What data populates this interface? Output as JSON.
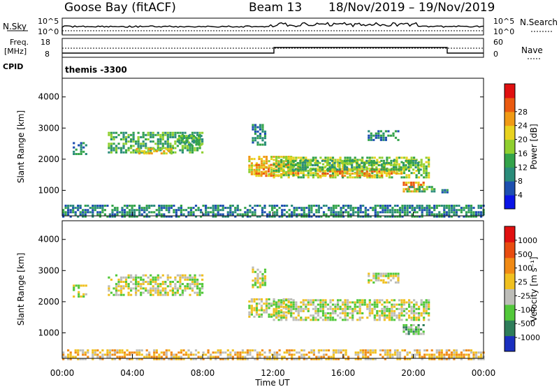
{
  "header": {
    "station": "Goose Bay (fitACF)",
    "beam": "Beam 13",
    "date_range": "18/Nov/2019 – 19/Nov/2019"
  },
  "sky_panel": {
    "left_label": "N.Sky",
    "right_label": "N.Search",
    "left_ticks": [
      "10^5",
      "10^0"
    ],
    "right_ticks": [
      "10^5",
      "10^0"
    ]
  },
  "freq_panel": {
    "left_label_1": "Freq.",
    "left_label_2": "[MHz]",
    "right_label": "Nave",
    "left_ticks": [
      "18",
      "8"
    ],
    "right_ticks": [
      "60",
      "0"
    ]
  },
  "cpid": {
    "label": "CPID",
    "value": "themis  -3300"
  },
  "chart_data": [
    {
      "type": "heatmap",
      "title": "Power",
      "ylabel": "Slant Range [km]",
      "ylim": [
        180,
        4600
      ],
      "yticks": [
        "1000",
        "2000",
        "3000",
        "4000"
      ],
      "xlim_hours": [
        0,
        24
      ],
      "colorbar_label": "Power [dB]",
      "colorbar_ticks": [
        "4",
        "8",
        "12",
        "16",
        "20",
        "24",
        "28"
      ],
      "colorbar_colors": [
        "#0a14e6",
        "#1d4fb0",
        "#2a8c7a",
        "#33a34a",
        "#8fcf2f",
        "#e8d21f",
        "#f09a15",
        "#ea5a10",
        "#e01010"
      ],
      "regions": [
        {
          "t0": 0.6,
          "t1": 1.4,
          "r0": 2200,
          "r1": 2600,
          "level": 2
        },
        {
          "t0": 2.6,
          "t1": 8.0,
          "r0": 2250,
          "r1": 2900,
          "level": 3
        },
        {
          "t0": 4.2,
          "t1": 6.2,
          "r0": 2220,
          "r1": 2420,
          "level": 5
        },
        {
          "t0": 6.6,
          "t1": 7.9,
          "r0": 2500,
          "r1": 2850,
          "level": 3
        },
        {
          "t0": 10.6,
          "t1": 13.0,
          "r0": 1550,
          "r1": 2150,
          "level": 5
        },
        {
          "t0": 11.0,
          "t1": 13.4,
          "r0": 1500,
          "r1": 1900,
          "level": 6
        },
        {
          "t0": 12.0,
          "t1": 20.9,
          "r0": 1450,
          "r1": 2100,
          "level": 4
        },
        {
          "t0": 14.5,
          "t1": 19.5,
          "r0": 1500,
          "r1": 1750,
          "level": 6
        },
        {
          "t0": 12.8,
          "t1": 20.5,
          "r0": 1700,
          "r1": 2000,
          "level": 3
        },
        {
          "t0": 19.4,
          "t1": 20.6,
          "r0": 1000,
          "r1": 1350,
          "level": 6
        },
        {
          "t0": 19.6,
          "t1": 21.2,
          "r0": 1000,
          "r1": 1150,
          "level": 3
        },
        {
          "t0": 21.6,
          "t1": 21.9,
          "r0": 900,
          "r1": 1050,
          "level": 2
        },
        {
          "t0": 17.4,
          "t1": 19.2,
          "r0": 2650,
          "r1": 2950,
          "level": 2
        },
        {
          "t0": 10.8,
          "t1": 11.6,
          "r0": 2500,
          "r1": 3200,
          "level": 2
        },
        {
          "t0": 0.0,
          "t1": 24.0,
          "r0": 190,
          "r1": 600,
          "level": 2
        }
      ]
    },
    {
      "type": "heatmap",
      "title": "Velocity",
      "ylabel": "Slant Range [km]",
      "ylim": [
        180,
        4600
      ],
      "yticks": [
        "1000",
        "2000",
        "3000",
        "4000"
      ],
      "xlabel": "Time UT",
      "xticks": [
        "00:00",
        "04:00",
        "08:00",
        "12:00",
        "16:00",
        "20:00",
        "00:00"
      ],
      "xlim_hours": [
        0,
        24
      ],
      "colorbar_label": "Velocity [m s⁻¹]",
      "colorbar_ticks": [
        "1000",
        "500",
        "100",
        "25",
        "-25",
        "-100",
        "-500",
        "-1000"
      ],
      "colorbar_colors": [
        "#1a2fbf",
        "#2e7d5a",
        "#52c83a",
        "#bdbdb8",
        "#f0c020",
        "#f08a15",
        "#e84c10",
        "#e01010"
      ],
      "regions": [
        {
          "t0": 0.6,
          "t1": 1.4,
          "r0": 2200,
          "r1": 2600,
          "level": 3
        },
        {
          "t0": 2.6,
          "t1": 8.0,
          "r0": 2250,
          "r1": 2900,
          "level": 3
        },
        {
          "t0": 10.6,
          "t1": 13.0,
          "r0": 1550,
          "r1": 2150,
          "level": 3
        },
        {
          "t0": 12.0,
          "t1": 20.9,
          "r0": 1450,
          "r1": 2100,
          "level": 3
        },
        {
          "t0": 19.4,
          "t1": 20.6,
          "r0": 1000,
          "r1": 1350,
          "level": 2
        },
        {
          "t0": 17.4,
          "t1": 19.2,
          "r0": 2650,
          "r1": 2950,
          "level": 3
        },
        {
          "t0": 10.8,
          "t1": 11.6,
          "r0": 2500,
          "r1": 3200,
          "level": 3
        },
        {
          "t0": 0.0,
          "t1": 24.0,
          "r0": 190,
          "r1": 520,
          "level": 4
        }
      ]
    }
  ]
}
